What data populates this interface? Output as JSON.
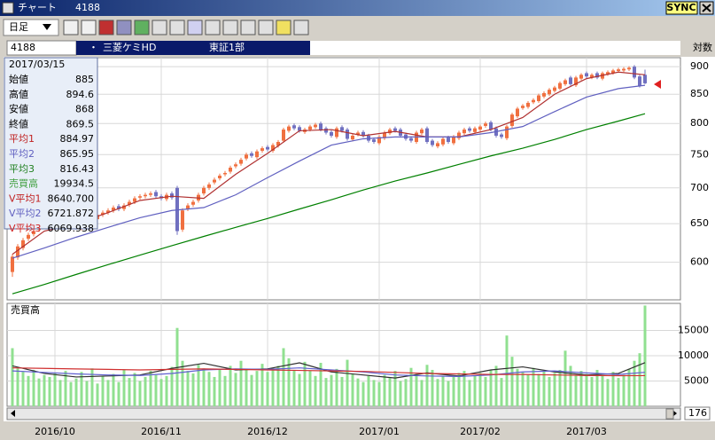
{
  "window": {
    "title": "チャート",
    "code": "4188",
    "sync": "SYNC"
  },
  "toolbar": {
    "period": "日足"
  },
  "stock": {
    "code": "4188",
    "name": "三菱ケミHD",
    "market": "東証1部",
    "scale": "対数"
  },
  "info_panel": {
    "date": "2017/03/15",
    "rows": [
      {
        "label": "始値",
        "value": "885",
        "color": "#000000"
      },
      {
        "label": "高値",
        "value": "894.6",
        "color": "#000000"
      },
      {
        "label": "安値",
        "value": "868",
        "color": "#000000"
      },
      {
        "label": "終値",
        "value": "869.5",
        "color": "#000000"
      },
      {
        "label": "平均1",
        "value": "884.97",
        "color": "#c02020"
      },
      {
        "label": "平均2",
        "value": "865.95",
        "color": "#6060c0"
      },
      {
        "label": "平均3",
        "value": "816.43",
        "color": "#208020"
      },
      {
        "label": "売買高",
        "value": "19934.5",
        "color": "#40a040"
      },
      {
        "label": "V平均1",
        "value": "8640.700",
        "color": "#c02020"
      },
      {
        "label": "V平均2",
        "value": "6721.872",
        "color": "#6060c0"
      },
      {
        "label": "V平均3",
        "value": "6069.938",
        "color": "#d02020"
      }
    ]
  },
  "chart_data": [
    {
      "type": "candlestick",
      "log_scale": true,
      "grid": true,
      "up_color": "#f07040",
      "down_color": "#7070c0",
      "ylim": [
        555,
        917
      ],
      "yticks": [
        600,
        650,
        700,
        750,
        800,
        850,
        900
      ],
      "categories": [
        null,
        null,
        null,
        null,
        null,
        null,
        null,
        null,
        "2016/10",
        null,
        null,
        null,
        null,
        null,
        null,
        null,
        null,
        null,
        null,
        null,
        null,
        null,
        null,
        null,
        null,
        null,
        null,
        null,
        "2016/11",
        null,
        null,
        null,
        null,
        null,
        null,
        null,
        null,
        null,
        null,
        null,
        null,
        null,
        null,
        null,
        null,
        null,
        null,
        null,
        "2016/12",
        null,
        null,
        null,
        null,
        null,
        null,
        null,
        null,
        null,
        null,
        null,
        null,
        null,
        null,
        null,
        null,
        null,
        null,
        null,
        null,
        "2017/01",
        null,
        null,
        null,
        null,
        null,
        null,
        null,
        null,
        null,
        null,
        null,
        null,
        null,
        null,
        null,
        null,
        null,
        null,
        "2017/02",
        null,
        null,
        null,
        null,
        null,
        null,
        null,
        null,
        null,
        null,
        null,
        null,
        null,
        null,
        null,
        null,
        null,
        null,
        null,
        "2017/03",
        null,
        null,
        null,
        null,
        null,
        null,
        null,
        null,
        null,
        null,
        null
      ],
      "open": [
        588,
        606,
        618,
        630,
        636,
        642,
        646,
        652,
        646,
        650,
        658,
        652,
        650,
        644,
        652,
        662,
        656,
        662,
        665,
        668,
        674,
        670,
        676,
        680,
        686,
        688,
        690,
        694,
        688,
        684,
        692,
        700,
        642,
        670,
        676,
        682,
        692,
        700,
        708,
        714,
        720,
        724,
        732,
        736,
        744,
        752,
        746,
        756,
        762,
        756,
        764,
        772,
        788,
        797,
        794,
        786,
        790,
        794,
        800,
        792,
        786,
        778,
        794,
        790,
        774,
        782,
        786,
        780,
        774,
        768,
        776,
        784,
        792,
        790,
        782,
        776,
        770,
        784,
        792,
        772,
        763,
        766,
        777,
        768,
        776,
        784,
        792,
        786,
        790,
        796,
        802,
        792,
        782,
        776,
        796,
        812,
        826,
        828,
        836,
        838,
        846,
        850,
        856,
        860,
        868,
        880,
        866,
        878,
        888,
        880,
        888,
        878,
        886,
        888,
        892,
        893,
        895,
        900,
        882,
        885
      ],
      "high": [
        610,
        623,
        631,
        638,
        643,
        648,
        653,
        655,
        655,
        658,
        661,
        655,
        653,
        655,
        663,
        665,
        665,
        668,
        671,
        675,
        677,
        678,
        683,
        688,
        691,
        693,
        695,
        697,
        691,
        693,
        695,
        703,
        671,
        678,
        683,
        693,
        703,
        708,
        715,
        721,
        725,
        733,
        738,
        745,
        753,
        755,
        758,
        763,
        765,
        768,
        773,
        793,
        798,
        800,
        797,
        793,
        798,
        801,
        803,
        795,
        789,
        795,
        797,
        793,
        783,
        788,
        789,
        783,
        777,
        781,
        788,
        793,
        795,
        793,
        785,
        779,
        788,
        793,
        795,
        775,
        771,
        778,
        780,
        781,
        788,
        793,
        795,
        795,
        798,
        803,
        805,
        795,
        785,
        798,
        818,
        828,
        833,
        838,
        843,
        851,
        855,
        861,
        865,
        873,
        878,
        883,
        883,
        888,
        891,
        888,
        891,
        891,
        893,
        896,
        898,
        899,
        901,
        903,
        885,
        894.6
      ],
      "low": [
        582,
        603,
        615,
        627,
        633,
        639,
        643,
        645,
        643,
        647,
        647,
        645,
        642,
        641,
        649,
        655,
        653,
        659,
        662,
        665,
        667,
        667,
        673,
        677,
        683,
        685,
        687,
        685,
        682,
        681,
        683,
        635,
        639,
        667,
        673,
        679,
        689,
        697,
        705,
        711,
        717,
        721,
        729,
        733,
        741,
        745,
        743,
        753,
        755,
        753,
        761,
        769,
        785,
        789,
        785,
        783,
        787,
        791,
        787,
        782,
        777,
        775,
        785,
        772,
        771,
        779,
        777,
        769,
        767,
        765,
        773,
        781,
        785,
        777,
        772,
        769,
        767,
        781,
        767,
        762,
        760,
        763,
        767,
        765,
        773,
        781,
        785,
        783,
        787,
        793,
        787,
        777,
        775,
        773,
        793,
        809,
        823,
        825,
        833,
        835,
        843,
        847,
        853,
        857,
        865,
        865,
        863,
        875,
        879,
        877,
        877,
        875,
        883,
        885,
        889,
        890,
        892,
        877,
        862,
        868
      ],
      "close": [
        607,
        620,
        628,
        635,
        640,
        645,
        650,
        648,
        652,
        655,
        650,
        648,
        645,
        652,
        660,
        658,
        662,
        665,
        668,
        672,
        670,
        675,
        680,
        685,
        688,
        690,
        692,
        688,
        685,
        690,
        686,
        640,
        668,
        675,
        680,
        690,
        700,
        705,
        712,
        718,
        722,
        730,
        735,
        742,
        750,
        748,
        755,
        760,
        758,
        765,
        770,
        790,
        795,
        792,
        788,
        790,
        795,
        798,
        790,
        785,
        780,
        792,
        788,
        775,
        780,
        785,
        780,
        772,
        770,
        778,
        785,
        790,
        788,
        780,
        775,
        772,
        785,
        790,
        770,
        765,
        768,
        775,
        770,
        778,
        785,
        790,
        788,
        792,
        795,
        800,
        790,
        780,
        778,
        795,
        815,
        825,
        830,
        835,
        840,
        848,
        852,
        858,
        862,
        870,
        875,
        868,
        880,
        885,
        882,
        885,
        880,
        888,
        890,
        893,
        895,
        896,
        898,
        880,
        865,
        869.5
      ],
      "lines": [
        {
          "color": "#b03030",
          "x": [
            0,
            6,
            12,
            18,
            24,
            30,
            36,
            42,
            48,
            54,
            60,
            66,
            72,
            78,
            84,
            90,
            96,
            102,
            108,
            114,
            119
          ],
          "values": [
            610,
            640,
            650,
            665,
            682,
            688,
            685,
            720,
            752,
            788,
            790,
            780,
            787,
            778,
            778,
            790,
            810,
            850,
            878,
            890,
            884.97
          ]
        },
        {
          "color": "#6060c0",
          "x": [
            0,
            6,
            12,
            18,
            24,
            30,
            36,
            42,
            48,
            54,
            60,
            66,
            72,
            78,
            84,
            90,
            96,
            102,
            108,
            114,
            119
          ],
          "values": [
            605,
            618,
            632,
            645,
            658,
            668,
            672,
            690,
            715,
            740,
            765,
            775,
            778,
            778,
            778,
            785,
            795,
            820,
            845,
            860,
            865.95
          ]
        },
        {
          "color": "#008000",
          "x": [
            0,
            6,
            12,
            18,
            24,
            30,
            36,
            42,
            48,
            54,
            60,
            66,
            72,
            78,
            84,
            90,
            96,
            102,
            108,
            114,
            119
          ],
          "values": [
            562,
            573,
            585,
            597,
            609,
            621,
            633,
            645,
            657,
            670,
            683,
            697,
            710,
            722,
            735,
            748,
            760,
            774,
            790,
            804,
            816.43
          ]
        }
      ]
    },
    {
      "type": "bar",
      "title": "売買高",
      "color": "#90e090",
      "ylim": [
        0,
        20360
      ],
      "yticks": [
        5000,
        10000,
        15000
      ],
      "grid": true,
      "values": [
        11500,
        7500,
        6800,
        6000,
        7200,
        5500,
        6200,
        5800,
        6500,
        5200,
        7000,
        4800,
        5500,
        6800,
        5000,
        7500,
        4500,
        6000,
        5200,
        6400,
        4800,
        7200,
        5600,
        6600,
        5000,
        5800,
        7000,
        6200,
        5400,
        6000,
        7800,
        15500,
        9000,
        7000,
        6500,
        8200,
        7500,
        6800,
        5800,
        7400,
        6000,
        8000,
        6600,
        9000,
        7200,
        6200,
        7000,
        8400,
        6800,
        7600,
        8000,
        11500,
        9500,
        7200,
        6400,
        8800,
        7000,
        6000,
        8600,
        5600,
        6200,
        7400,
        5800,
        9200,
        6400,
        5500,
        4800,
        6000,
        5200,
        4800,
        6200,
        5600,
        7000,
        5000,
        5400,
        7600,
        6400,
        5200,
        8200,
        7200,
        5400,
        6000,
        5000,
        5800,
        6600,
        7000,
        5200,
        6000,
        6600,
        5800,
        7200,
        8000,
        5600,
        14000,
        9800,
        7400,
        6800,
        6200,
        7600,
        6400,
        7000,
        5800,
        6600,
        7200,
        11000,
        8000,
        6200,
        7000,
        6400,
        5800,
        7200,
        6000,
        5400,
        6800,
        5600,
        6200,
        7400,
        9000,
        10500,
        19934.5
      ],
      "lines": [
        {
          "color": "#303030",
          "x": [
            0,
            6,
            12,
            18,
            24,
            30,
            36,
            42,
            48,
            54,
            60,
            66,
            72,
            78,
            84,
            90,
            96,
            102,
            108,
            114,
            119
          ],
          "values": [
            8000,
            6500,
            5800,
            6000,
            6200,
            7500,
            8500,
            7200,
            7400,
            8600,
            6800,
            6200,
            5600,
            6600,
            6000,
            7200,
            7800,
            6800,
            6200,
            6500,
            8640.7
          ]
        },
        {
          "color": "#6060d0",
          "x": [
            0,
            6,
            12,
            18,
            24,
            30,
            36,
            42,
            48,
            54,
            60,
            66,
            72,
            78,
            84,
            90,
            96,
            102,
            108,
            114,
            119
          ],
          "values": [
            7000,
            6700,
            6400,
            6200,
            6100,
            6500,
            7200,
            7400,
            7300,
            7600,
            7200,
            6800,
            6200,
            6000,
            5900,
            6200,
            6800,
            7000,
            6600,
            6300,
            6721.872
          ]
        },
        {
          "color": "#d03030",
          "x": [
            0,
            6,
            12,
            18,
            24,
            30,
            36,
            42,
            48,
            54,
            60,
            66,
            72,
            78,
            84,
            90,
            96,
            102,
            108,
            114,
            119
          ],
          "values": [
            7600,
            7500,
            7400,
            7300,
            7200,
            7300,
            7400,
            7300,
            7200,
            7100,
            7000,
            6900,
            6700,
            6500,
            6400,
            6300,
            6300,
            6200,
            6100,
            6050,
            6069.938
          ]
        }
      ]
    }
  ],
  "scrollbar": {
    "value": 176
  }
}
